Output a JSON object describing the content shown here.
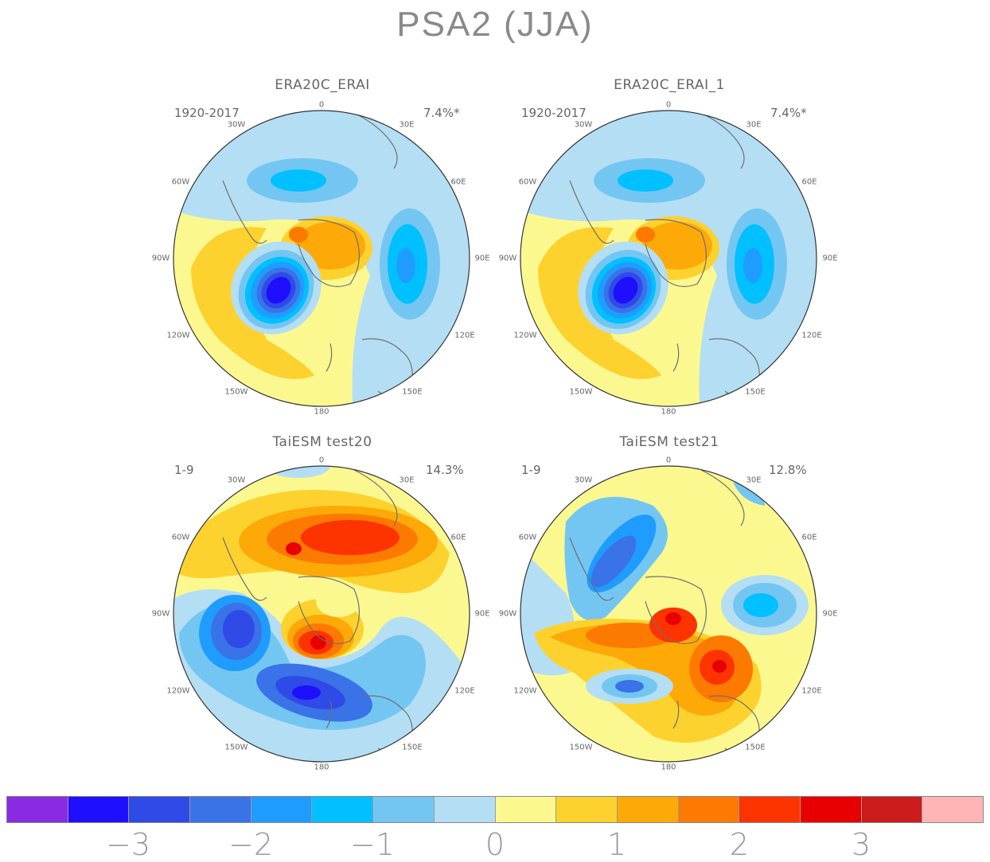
{
  "title": "PSA2 (JJA)",
  "panels": [
    {
      "title": "ERA20C_ERAI",
      "period": "1920-2017",
      "variance": "7.4%*"
    },
    {
      "title": "ERA20C_ERAI_1",
      "period": "1920-2017",
      "variance": "7.4%*"
    },
    {
      "title": "TaiESM test20",
      "period": "1-9",
      "variance": "14.3%"
    },
    {
      "title": "TaiESM test21",
      "period": "1-9",
      "variance": "12.8%"
    }
  ],
  "longitude_labels": [
    "0",
    "30E",
    "60E",
    "90E",
    "120E",
    "150E",
    "180",
    "150W",
    "120W",
    "90W",
    "60W",
    "30W"
  ],
  "colorbar": {
    "colors": [
      "#8a2be2",
      "#1e0fff",
      "#2f4ae6",
      "#3a72e8",
      "#1e9cff",
      "#00c0ff",
      "#74c6f2",
      "#b4def4",
      "#fcf890",
      "#fdd22e",
      "#fda908",
      "#fd7a00",
      "#fd3300",
      "#e80000",
      "#cc1b1b",
      "#ffb5b5"
    ],
    "tick_labels": [
      "−3",
      "−2",
      "−1",
      "0",
      "1",
      "2",
      "3"
    ]
  }
}
